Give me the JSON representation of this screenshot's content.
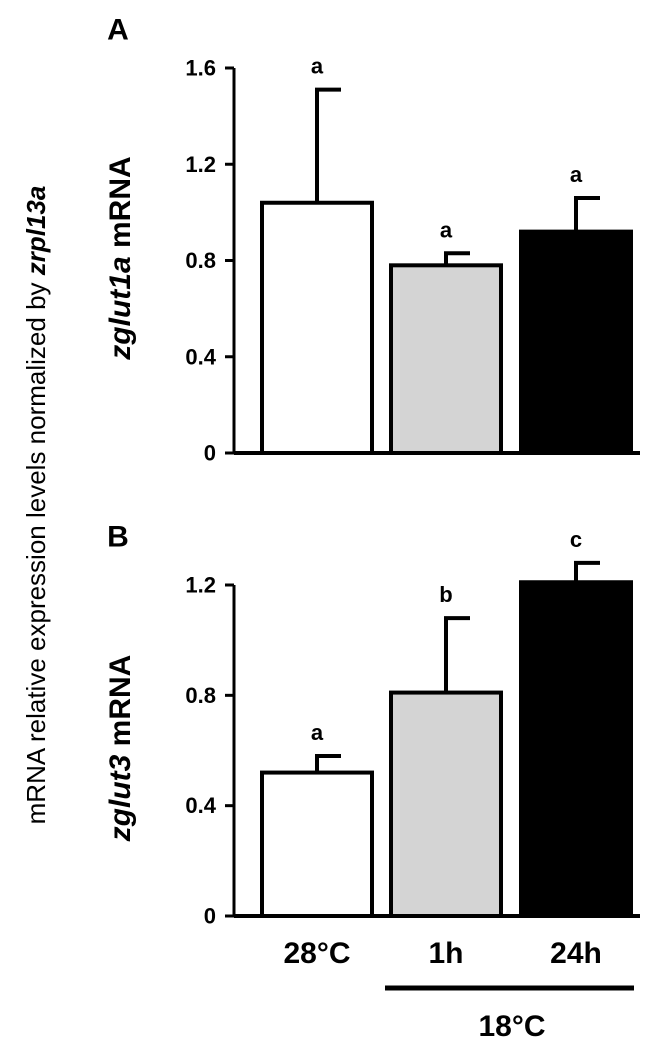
{
  "shared_ylabel": {
    "prefix": "mRNA relative expression levels normalized by ",
    "gene": "zrpl13a"
  },
  "group_label": "18°C",
  "colors": {
    "bar_fills": [
      "#ffffff",
      "#d4d4d4",
      "#000000"
    ],
    "stroke": "#000000"
  },
  "chart_data": [
    {
      "type": "bar",
      "panel": "A",
      "ylabel_gene": "zglut1a",
      "ylabel_suffix": " mRNA",
      "categories": [
        "28°C",
        "1h",
        "24h"
      ],
      "values": [
        1.04,
        0.78,
        0.92
      ],
      "errors": [
        0.47,
        0.05,
        0.14
      ],
      "significance": [
        "a",
        "a",
        "a"
      ],
      "yticks": [
        "0",
        "0.4",
        "0.8",
        "1.2",
        "1.6"
      ],
      "ylim": [
        0,
        1.6
      ],
      "grid": false,
      "show_xlabels": false
    },
    {
      "type": "bar",
      "panel": "B",
      "ylabel_gene": "zglut3",
      "ylabel_suffix": " mRNA",
      "categories": [
        "28°C",
        "1h",
        "24h"
      ],
      "values": [
        0.52,
        0.81,
        1.21
      ],
      "errors": [
        0.06,
        0.27,
        0.07
      ],
      "significance": [
        "a",
        "b",
        "c"
      ],
      "yticks": [
        "0",
        "0.4",
        "0.8",
        "1.2"
      ],
      "ylim": [
        0,
        1.2
      ],
      "grid": false,
      "show_xlabels": true
    }
  ]
}
